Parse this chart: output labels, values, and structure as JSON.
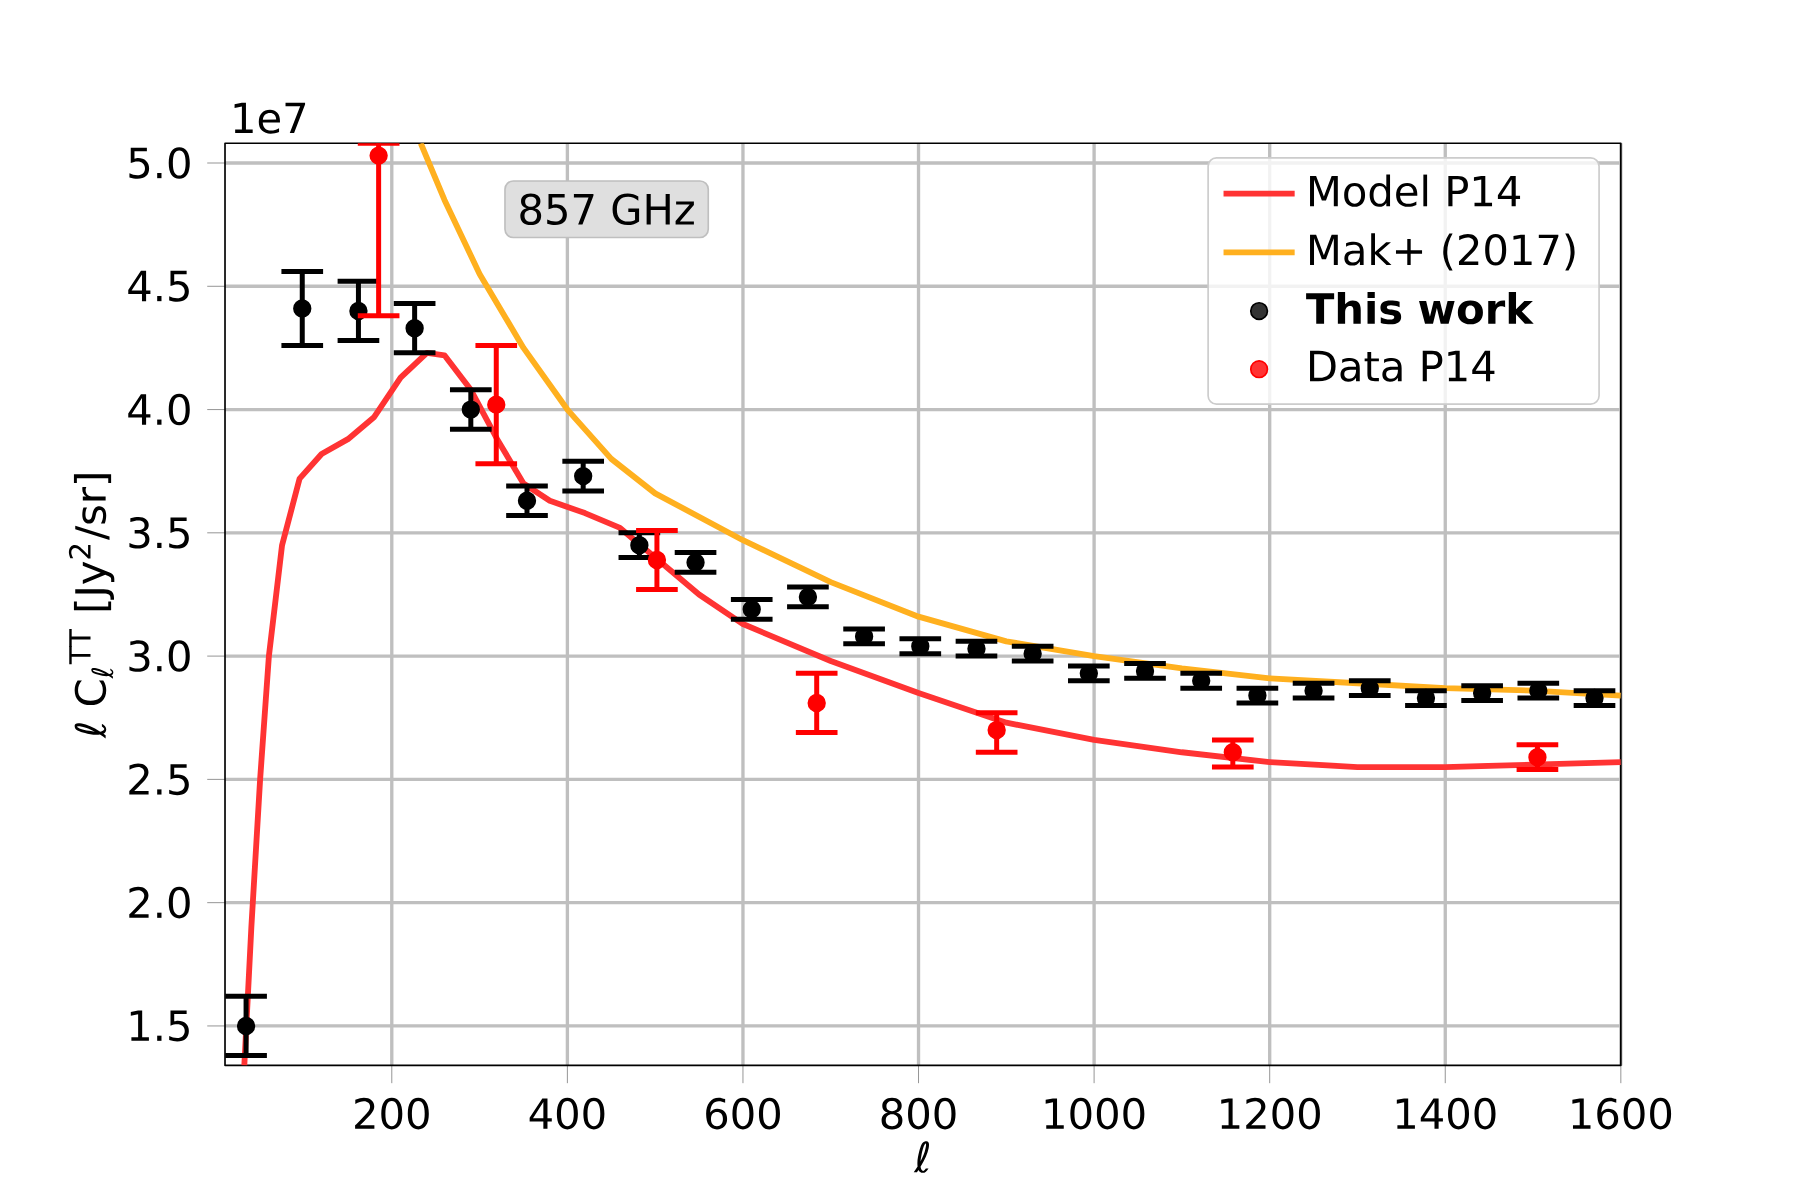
{
  "chart_data": {
    "type": "line",
    "xlabel": "ℓ",
    "ylabel": "ℓ C$_{ℓ}$$^{TT}$ [Jy$^{2}$/sr]",
    "annotations": [
      "857 GHz",
      "1e7"
    ],
    "xlim": [
      10,
      1600
    ],
    "ylim": [
      1.34,
      5.08
    ],
    "xticks": [
      200,
      400,
      600,
      800,
      1000,
      1200,
      1400,
      1600
    ],
    "yticks": [
      1.5,
      {
        "value": 2,
        "label": "2.0"
      },
      2.5,
      {
        "value": 3,
        "label": "3.0"
      },
      3.5,
      {
        "value": 4,
        "label": "4.0"
      },
      4.5,
      {
        "value": 5,
        "label": "5.0"
      }
    ],
    "grid": true,
    "legend": "top right",
    "series": [
      {
        "name": "Model P14",
        "marker": "none",
        "color": "#ff3333",
        "x": [
          32,
          40,
          50,
          60,
          75,
          95,
          120,
          150,
          180,
          210,
          240,
          260,
          290,
          320,
          350,
          380,
          420,
          460,
          500,
          550,
          600,
          700,
          800,
          900,
          1000,
          1100,
          1200,
          1300,
          1400,
          1500,
          1600
        ],
        "values": [
          1.34,
          1.9,
          2.5,
          3.0,
          3.45,
          3.72,
          3.82,
          3.88,
          3.97,
          4.13,
          4.23,
          4.22,
          4.08,
          3.88,
          3.7,
          3.63,
          3.58,
          3.52,
          3.4,
          3.25,
          3.13,
          2.98,
          2.85,
          2.73,
          2.66,
          2.61,
          2.57,
          2.55,
          2.55,
          2.56,
          2.57
        ]
      },
      {
        "name": "Mak+ (2017)",
        "marker": "none",
        "color": "#ffb01f",
        "x": [
          233,
          260,
          300,
          350,
          400,
          450,
          500,
          600,
          700,
          800,
          900,
          1000,
          1100,
          1200,
          1300,
          1400,
          1500,
          1600
        ],
        "values": [
          5.08,
          4.85,
          4.55,
          4.25,
          4.0,
          3.8,
          3.66,
          3.47,
          3.3,
          3.16,
          3.06,
          3.0,
          2.95,
          2.91,
          2.89,
          2.87,
          2.86,
          2.84
        ]
      },
      {
        "name": "**This work**",
        "type": "scatter",
        "marker": "circle",
        "color": "#000000",
        "x": [
          34,
          98,
          162,
          226,
          290,
          354,
          418,
          482,
          546,
          610,
          674,
          738,
          802,
          866,
          930,
          994,
          1058,
          1122,
          1186,
          1250,
          1314,
          1378,
          1442,
          1506,
          1570
        ],
        "values": [
          1.5,
          4.41,
          4.4,
          4.33,
          4.0,
          3.63,
          3.73,
          3.45,
          3.38,
          3.19,
          3.24,
          3.08,
          3.04,
          3.03,
          3.01,
          2.93,
          2.94,
          2.9,
          2.84,
          2.86,
          2.87,
          2.83,
          2.85,
          2.86,
          2.83
        ],
        "errors": [
          0.12,
          0.15,
          0.12,
          0.1,
          0.08,
          0.06,
          0.06,
          0.05,
          0.04,
          0.04,
          0.04,
          0.03,
          0.03,
          0.03,
          0.03,
          0.03,
          0.03,
          0.03,
          0.03,
          0.03,
          0.03,
          0.03,
          0.03,
          0.03,
          0.03
        ]
      },
      {
        "name": "Data P14",
        "type": "scatter",
        "marker": "circle",
        "color": "#ff0000",
        "x": [
          185,
          319,
          502,
          684,
          889,
          1158,
          1505
        ],
        "values": [
          5.03,
          4.02,
          3.39,
          2.81,
          2.7,
          2.61,
          2.59
        ],
        "errors": [
          [
            4.38,
            5.08
          ],
          [
            3.78,
            4.26
          ],
          [
            3.27,
            3.51
          ],
          [
            2.69,
            2.93
          ],
          [
            2.61,
            2.77
          ],
          [
            2.55,
            2.66
          ],
          [
            2.54,
            2.64
          ]
        ]
      }
    ]
  }
}
